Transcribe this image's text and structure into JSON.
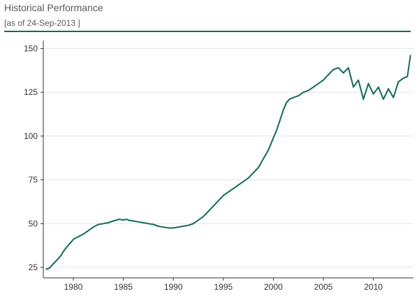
{
  "header": {
    "title": "Historical Performance",
    "as_of": "[as of 24-Sep-2013 ]"
  },
  "colors": {
    "accent": "#0f6b5a",
    "grid": "#e6e6e6",
    "axis": "#333333"
  },
  "chart_data": {
    "type": "line",
    "title": "Historical Performance",
    "subtitle": "[as of 24-Sep-2013 ]",
    "xlabel": "",
    "ylabel": "",
    "xlim": [
      1977.0,
      2014.0
    ],
    "ylim": [
      19,
      153
    ],
    "x_ticks": [
      1980,
      1985,
      1990,
      1995,
      2000,
      2005,
      2010
    ],
    "y_ticks": [
      25,
      50,
      75,
      100,
      125,
      150
    ],
    "grid": "horizontal",
    "legend": "none",
    "series": [
      {
        "name": "",
        "x": [
          1977.3,
          1977.6,
          1978.0,
          1978.5,
          1978.8,
          1979.0,
          1979.4,
          1979.8,
          1980.0,
          1980.5,
          1981.0,
          1981.5,
          1982.0,
          1982.5,
          1983.0,
          1983.5,
          1984.0,
          1984.3,
          1984.6,
          1985.0,
          1985.3,
          1985.6,
          1986.0,
          1986.5,
          1987.0,
          1987.5,
          1988.0,
          1988.5,
          1989.0,
          1989.5,
          1990.0,
          1990.5,
          1991.0,
          1991.5,
          1992.0,
          1992.5,
          1993.0,
          1993.5,
          1994.0,
          1994.5,
          1995.0,
          1995.5,
          1996.0,
          1996.5,
          1997.0,
          1997.5,
          1998.0,
          1998.5,
          1999.0,
          1999.5,
          2000.0,
          2000.3,
          2000.6,
          2001.0,
          2001.3,
          2001.6,
          2002.0,
          2002.5,
          2003.0,
          2003.5,
          2004.0,
          2004.5,
          2005.0,
          2005.5,
          2006.0,
          2006.5,
          2007.0,
          2007.5,
          2008.0,
          2008.5,
          2009.0,
          2009.5,
          2010.0,
          2010.5,
          2011.0,
          2011.5,
          2012.0,
          2012.5,
          2013.0,
          2013.4,
          2013.7
        ],
        "values": [
          24,
          24.5,
          27,
          30,
          32,
          34,
          37,
          39.5,
          41,
          42.5,
          44,
          46,
          48,
          49.5,
          50,
          50.5,
          51.5,
          52,
          52.5,
          52,
          52.5,
          51.8,
          51.5,
          51,
          50.5,
          50,
          49.5,
          48.5,
          48,
          47.5,
          47.5,
          48,
          48.5,
          49,
          50,
          52,
          54,
          57,
          60,
          63,
          66,
          68,
          70,
          72,
          74,
          76,
          79,
          82,
          87,
          92,
          99,
          103,
          108,
          115,
          119,
          121,
          122,
          123,
          125,
          126,
          128,
          130,
          132,
          135,
          138,
          139,
          136,
          139,
          128,
          132,
          121,
          130,
          124,
          128,
          121,
          127,
          122,
          131,
          133,
          134,
          146
        ]
      }
    ]
  }
}
